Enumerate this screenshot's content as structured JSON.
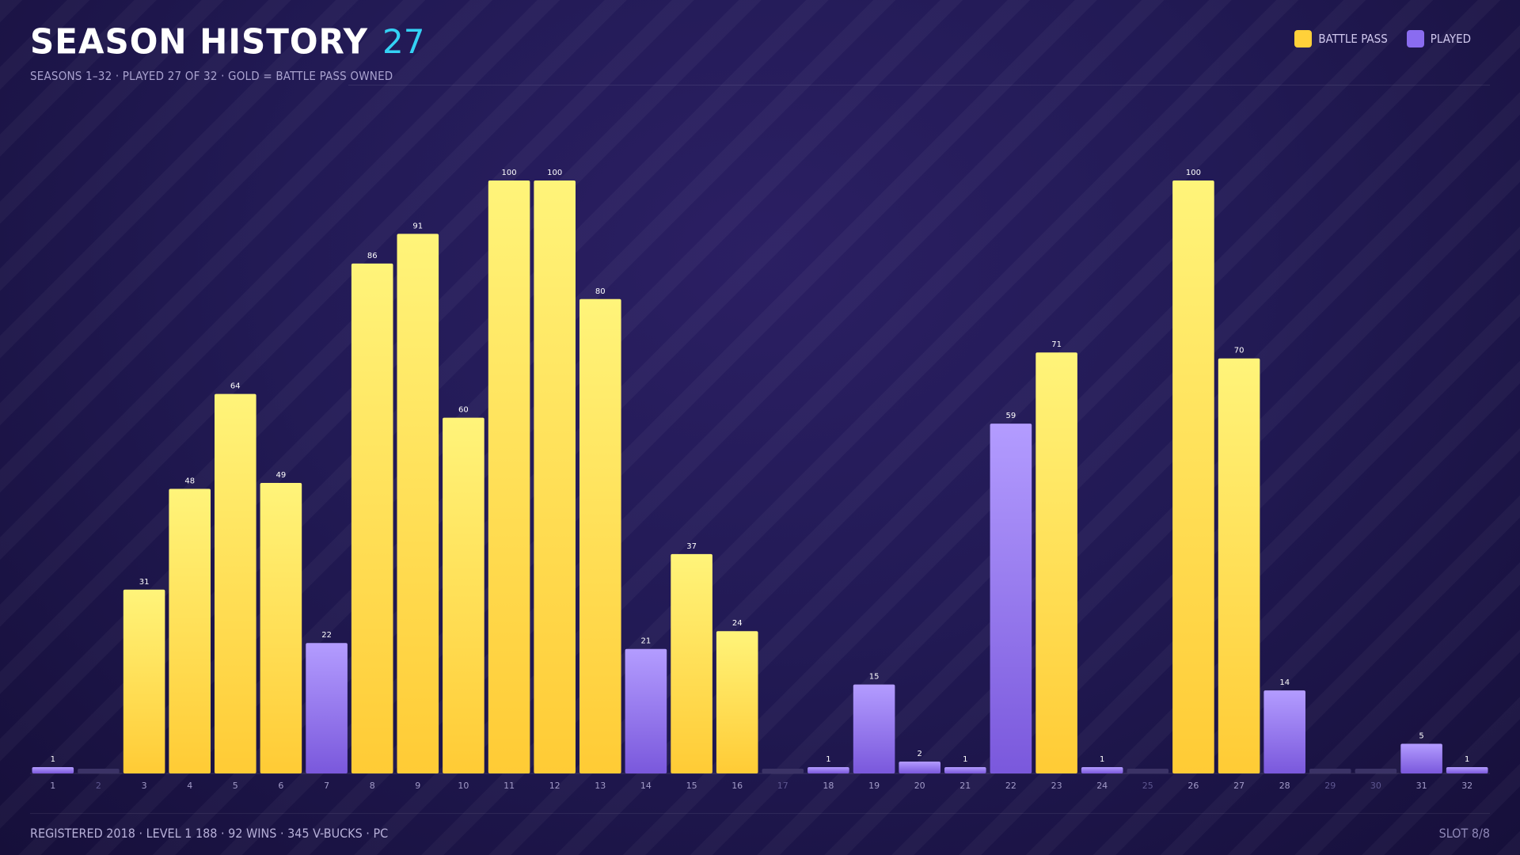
{
  "header": {
    "title": "SEASON HISTORY",
    "count": "27",
    "subtitle": "SEASONS 1–32 · PLAYED 27 OF 32 · GOLD = BATTLE PASS OWNED"
  },
  "legend": {
    "battle_pass": "BATTLE PASS",
    "played": "PLAYED"
  },
  "colors": {
    "battle_pass_top": "#fff47a",
    "battle_pass_bottom": "#ffcb35",
    "played_top": "#b39cff",
    "played_bottom": "#7a58dc",
    "empty": "#3b3366",
    "value_label": "#ffffff",
    "tick_label": "#a29bc8",
    "tick_label_dim": "#5e5790"
  },
  "footer": {
    "left": "REGISTERED 2018 · LEVEL 1 188 · 92 WINS · 345 V-BUCKS · PC",
    "right": "SLOT 8/8"
  },
  "chart_data": {
    "type": "bar",
    "categories": [
      "1",
      "2",
      "3",
      "4",
      "5",
      "6",
      "7",
      "8",
      "9",
      "10",
      "11",
      "12",
      "13",
      "14",
      "15",
      "16",
      "17",
      "18",
      "19",
      "20",
      "21",
      "22",
      "23",
      "24",
      "25",
      "26",
      "27",
      "28",
      "29",
      "30",
      "31",
      "32"
    ],
    "values": [
      1,
      0,
      31,
      48,
      64,
      49,
      22,
      86,
      91,
      60,
      100,
      100,
      80,
      21,
      37,
      24,
      0,
      1,
      15,
      2,
      1,
      59,
      71,
      1,
      0,
      100,
      70,
      14,
      0,
      0,
      5,
      1
    ],
    "series_kind": [
      "played",
      "none",
      "battle_pass",
      "battle_pass",
      "battle_pass",
      "battle_pass",
      "played",
      "battle_pass",
      "battle_pass",
      "battle_pass",
      "battle_pass",
      "battle_pass",
      "battle_pass",
      "played",
      "battle_pass",
      "battle_pass",
      "none",
      "played",
      "played",
      "played",
      "played",
      "played",
      "battle_pass",
      "played",
      "none",
      "battle_pass",
      "battle_pass",
      "played",
      "none",
      "none",
      "played",
      "played"
    ],
    "ylim": [
      0,
      100
    ],
    "grid": false,
    "legend_position": "top-right"
  }
}
